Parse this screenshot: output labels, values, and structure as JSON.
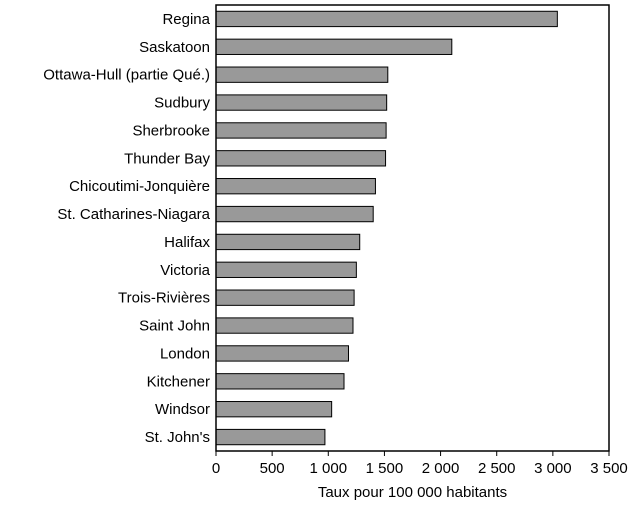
{
  "chart_data": {
    "type": "bar",
    "orientation": "horizontal",
    "categories": [
      "Regina",
      "Saskatoon",
      "Ottawa-Hull (partie Qué.)",
      "Sudbury",
      "Sherbrooke",
      "Thunder Bay",
      "Chicoutimi-Jonquière",
      "St. Catharines-Niagara",
      "Halifax",
      "Victoria",
      "Trois-Rivières",
      "Saint John",
      "London",
      "Kitchener",
      "Windsor",
      "St. John's"
    ],
    "values": [
      3040,
      2100,
      1530,
      1520,
      1515,
      1510,
      1420,
      1400,
      1280,
      1250,
      1230,
      1220,
      1180,
      1140,
      1030,
      970
    ],
    "xlabel": "Taux pour 100 000 habitants",
    "ylabel": "",
    "xlim": [
      0,
      3500
    ],
    "xticks": [
      0,
      500,
      1000,
      1500,
      2000,
      2500,
      3000,
      3500
    ],
    "xtick_labels": [
      "0",
      "500",
      "1 000",
      "1 500",
      "2 000",
      "2 500",
      "3 000",
      "3 500"
    ],
    "bar_color": "#999999",
    "grid": false
  }
}
